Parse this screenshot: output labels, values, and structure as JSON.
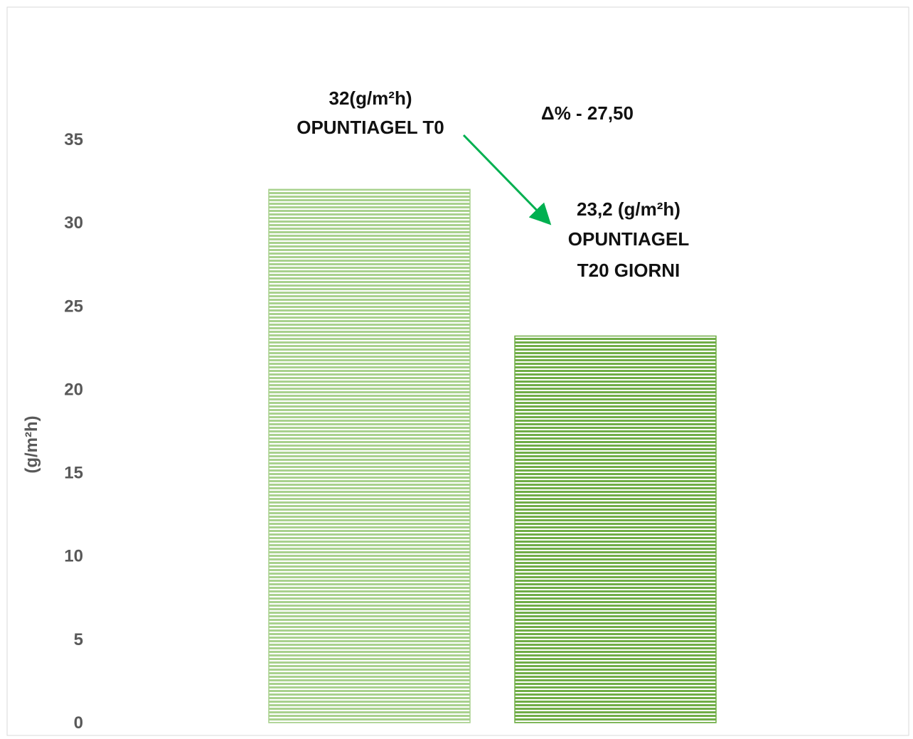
{
  "chart_data": {
    "type": "bar",
    "categories": [
      "OPUNTIAGEL T0",
      "OPUNTIAGEL T20 GIORNI"
    ],
    "values": [
      32,
      23.2
    ],
    "title": "",
    "xlabel": "",
    "ylabel": "(g/m²h)",
    "ylim": [
      0,
      35
    ],
    "yticks": [
      "0",
      "5",
      "10",
      "15",
      "20",
      "25",
      "30",
      "35"
    ],
    "grid": false,
    "colors": [
      "#a9d18e",
      "#70ad47"
    ],
    "annotations": {
      "bar1_value_label": "32(g/m²h)",
      "bar1_name_label": "OPUNTIAGEL T0",
      "delta_label": "Δ% - 27,50",
      "bar2_value_label": "23,2 (g/m²h)",
      "bar2_name_line1": "OPUNTIAGEL",
      "bar2_name_line2": "T20 GIORNI"
    },
    "arrow_color": "#00b050"
  }
}
